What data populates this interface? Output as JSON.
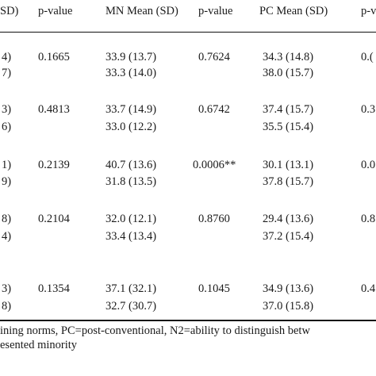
{
  "header": {
    "prev_sd": "SD)",
    "pvalue1": "p-value",
    "mn_mean": "MN Mean (SD)",
    "pvalue2": "p-value",
    "pc_mean": "PC Mean (SD)",
    "pvalue3": "p-v"
  },
  "rows": [
    {
      "a": {
        "c0": "4)",
        "c1": "0.1665",
        "c2": "33.9 (13.7)",
        "c3": "0.7624",
        "c4": "34.3 (14.8)",
        "c5": "0.("
      },
      "b": {
        "c0": "7)",
        "c2": "33.3 (14.0)",
        "c4": "38.0 (15.7)"
      }
    },
    {
      "a": {
        "c0": "3)",
        "c1": "0.4813",
        "c2": "33.7 (14.9)",
        "c3": "0.6742",
        "c4": "37.4 (15.7)",
        "c5": "0.3"
      },
      "b": {
        "c0": "6)",
        "c2": "33.0 (12.2)",
        "c4": "35.5 (15.4)"
      }
    },
    {
      "a": {
        "c0": "1)",
        "c1": "0.2139",
        "c2": "40.7 (13.6)",
        "c3": "0.0006**",
        "c4": "30.1 (13.1)",
        "c5": "0.0"
      },
      "b": {
        "c0": "9)",
        "c2": "31.8 (13.5)",
        "c4": "37.8 (15.7)"
      }
    },
    {
      "a": {
        "c0": "8)",
        "c1": "0.2104",
        "c2": "32.0 (12.1)",
        "c3": "0.8760",
        "c4": "29.4 (13.6)",
        "c5": "0.8"
      },
      "b": {
        "c0": "4)",
        "c2": "33.4 (13.4)",
        "c4": "37.2 (15.4)"
      }
    },
    {
      "a": {
        "c0": "3)",
        "c1": "0.1354",
        "c2": "37.1 (32.1)",
        "c3": "0.1045",
        "c4": "34.9 (13.6)",
        "c5": "0.4"
      },
      "b": {
        "c0": "8)",
        "c2": "32.7 (30.7)",
        "c4": "37.0 (15.8)"
      }
    }
  ],
  "footnote": {
    "line1": "ining norms, PC=post-conventional, N2=ability to distinguish betw",
    "line2": "esented minority"
  }
}
